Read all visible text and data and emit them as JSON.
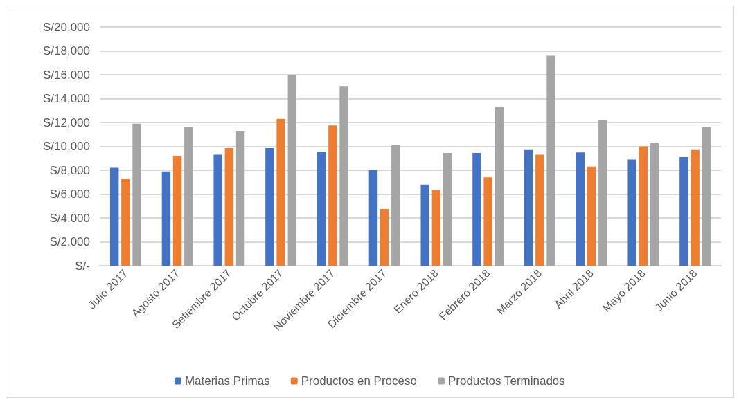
{
  "chart_data": {
    "type": "bar",
    "categories": [
      "Julio 2017",
      "Agosto 2017",
      "Setiembre 2017",
      "Octubre 2017",
      "Noviembre 2017",
      "Diciembre 2017",
      "Enero 2018",
      "Febrero 2018",
      "Marzo 2018",
      "Abril 2018",
      "Mayo 2018",
      "Junio 2018"
    ],
    "series": [
      {
        "name": "Materias Primas",
        "color": "#4472c4",
        "values": [
          8200,
          7900,
          9300,
          9850,
          9550,
          8000,
          6800,
          9450,
          9700,
          9500,
          8900,
          9100
        ]
      },
      {
        "name": "Productos en Proceso",
        "color": "#ed7d31",
        "values": [
          7300,
          9200,
          9850,
          12300,
          11750,
          4750,
          6350,
          7400,
          9300,
          8300,
          10000,
          9700
        ]
      },
      {
        "name": "Productos Terminados",
        "color": "#a5a5a5",
        "values": [
          11900,
          11600,
          11250,
          16000,
          15000,
          10100,
          9450,
          13300,
          17600,
          12200,
          10300,
          11600
        ]
      }
    ],
    "ylim": [
      0,
      20000
    ],
    "yticks": [
      {
        "value": 0,
        "label": "S/-"
      },
      {
        "value": 2000,
        "label": "S/2,000"
      },
      {
        "value": 4000,
        "label": "S/4,000"
      },
      {
        "value": 6000,
        "label": "S/6,000"
      },
      {
        "value": 8000,
        "label": "S/8,000"
      },
      {
        "value": 10000,
        "label": "S/10,000"
      },
      {
        "value": 12000,
        "label": "S/12,000"
      },
      {
        "value": 14000,
        "label": "S/14,000"
      },
      {
        "value": 16000,
        "label": "S/16,000"
      },
      {
        "value": 18000,
        "label": "S/18,000"
      },
      {
        "value": 20000,
        "label": "S/20,000"
      }
    ],
    "grid": "y",
    "legend": "bottom"
  }
}
